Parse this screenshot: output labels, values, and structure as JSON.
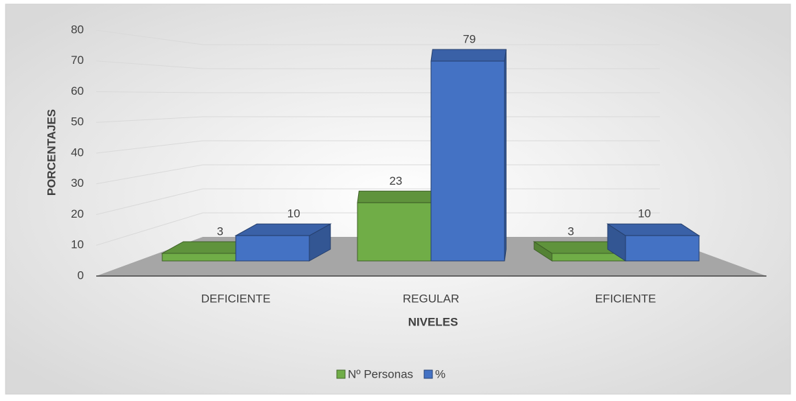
{
  "chart_data": {
    "type": "bar3d",
    "x_label": "NIVELES",
    "y_label": "PORCENTAJES",
    "categories": [
      "DEFICIENTE",
      "REGULAR",
      "EFICIENTE"
    ],
    "series": [
      {
        "name": "Nº Personas",
        "color": "#70ad47",
        "values": [
          3,
          23,
          3
        ]
      },
      {
        "name": "%",
        "color": "#4472c4",
        "values": [
          10,
          79,
          10
        ]
      }
    ],
    "ylim": [
      0,
      80
    ],
    "yticks": [
      0,
      10,
      20,
      30,
      40,
      50,
      60,
      70,
      80
    ],
    "grid": true,
    "legend": "bottom"
  }
}
